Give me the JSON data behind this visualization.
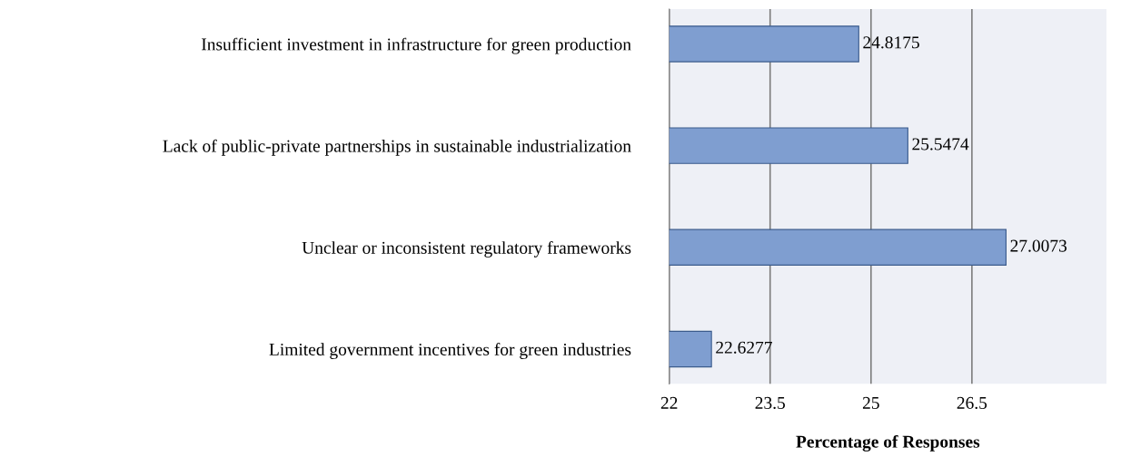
{
  "chart_data": {
    "type": "bar",
    "orientation": "horizontal",
    "xlabel": "Percentage of Responses",
    "categories": [
      "Insufficient investment in infrastructure for green production",
      "Lack of public-private partnerships in sustainable industrialization",
      "Unclear or inconsistent regulatory frameworks",
      "Limited government incentives for green industries"
    ],
    "values": [
      24.8175,
      25.5474,
      27.0073,
      22.6277
    ],
    "color": "#7f9ed0",
    "xlim": [
      22,
      28.5
    ],
    "xticks": [
      22,
      23.5,
      25,
      26.5
    ],
    "grid": "x",
    "data_labels": true
  }
}
